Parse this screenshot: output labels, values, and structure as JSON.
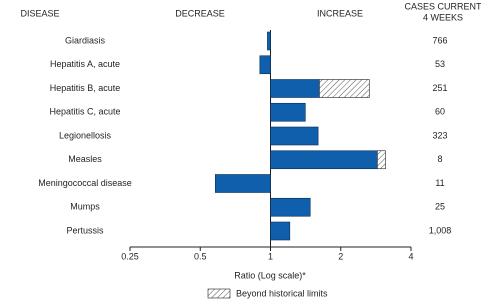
{
  "chart_data": {
    "type": "bar",
    "orientation": "horizontal",
    "log_scale": true,
    "header_disease": "DISEASE",
    "header_decrease": "DECREASE",
    "header_increase": "INCREASE",
    "header_cases": [
      "CASES CURRENT",
      "4 WEEKS"
    ],
    "categories": [
      "Giardiasis",
      "Hepatitis A, acute",
      "Hepatitis B, acute",
      "Hepatitis C, acute",
      "Legionellosis",
      "Measles",
      "Meningococcal disease",
      "Mumps",
      "Pertussis"
    ],
    "values": [
      0.97,
      0.9,
      2.65,
      1.41,
      1.6,
      3.11,
      0.58,
      1.48,
      1.21
    ],
    "historical_limits": [
      null,
      null,
      1.62,
      null,
      null,
      2.87,
      null,
      null,
      null
    ],
    "cases": [
      "766",
      "53",
      "251",
      "60",
      "323",
      "8",
      "11",
      "25",
      "1,008"
    ],
    "color": "#0f5fad",
    "xlim": [
      0.25,
      4
    ],
    "xticks": [
      0.25,
      0.5,
      1,
      2,
      4
    ],
    "baseline": 1,
    "xlabel": "Ratio (Log scale)*",
    "legend": "Beyond historical limits"
  }
}
